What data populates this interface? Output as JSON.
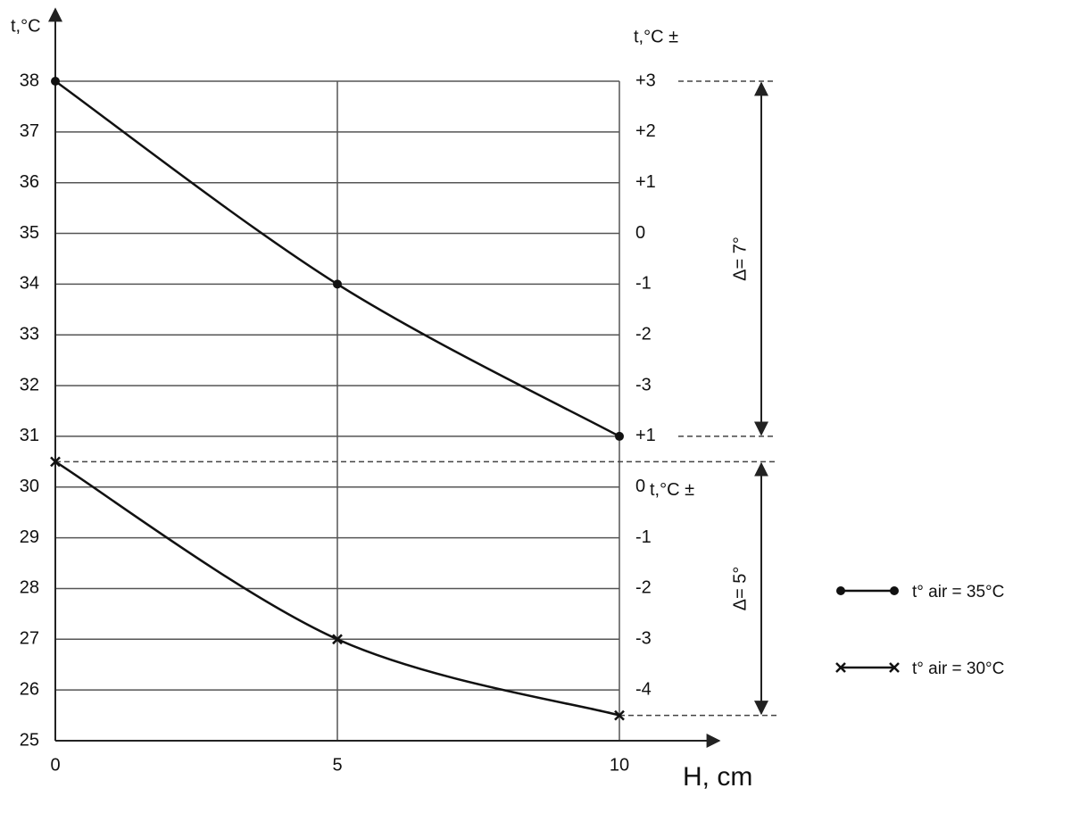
{
  "chart_data": {
    "type": "line",
    "y_label": "t,°C",
    "x_label": "H, cm",
    "x": [
      0,
      5,
      10
    ],
    "xlim": [
      0,
      10
    ],
    "xticks": [
      0,
      5,
      10
    ],
    "ylim": [
      25,
      38
    ],
    "yticks": [
      25,
      26,
      27,
      28,
      29,
      30,
      31,
      32,
      33,
      34,
      35,
      36,
      37,
      38
    ],
    "grid": true,
    "series": [
      {
        "name": "t° air = 35°C",
        "color": "#111111",
        "marker": "circle",
        "values": [
          38,
          34,
          31
        ]
      },
      {
        "name": "t° air = 30°C",
        "color": "#111111",
        "marker": "cross",
        "values": [
          30.5,
          27,
          25.5
        ]
      }
    ],
    "y2_titles": [
      "t,°C ±",
      "t,°C ±"
    ],
    "right_labels": [
      {
        "y": 38,
        "text": "+3"
      },
      {
        "y": 37,
        "text": "+2"
      },
      {
        "y": 36,
        "text": "+1"
      },
      {
        "y": 35,
        "text": "0"
      },
      {
        "y": 34,
        "text": "-1"
      },
      {
        "y": 33,
        "text": "-2"
      },
      {
        "y": 32,
        "text": "-3"
      },
      {
        "y": 31,
        "text": "+1"
      },
      {
        "y": 30,
        "text": "0"
      },
      {
        "y": 29,
        "text": "-1"
      },
      {
        "y": 28,
        "text": "-2"
      },
      {
        "y": 27,
        "text": "-3"
      },
      {
        "y": 26,
        "text": "-4"
      }
    ],
    "annotations": [
      {
        "text": "Δ= 7°",
        "from": 38,
        "to": 31
      },
      {
        "text": "Δ= 5°",
        "from": 30.5,
        "to": 25.5
      }
    ],
    "legend": "right"
  }
}
